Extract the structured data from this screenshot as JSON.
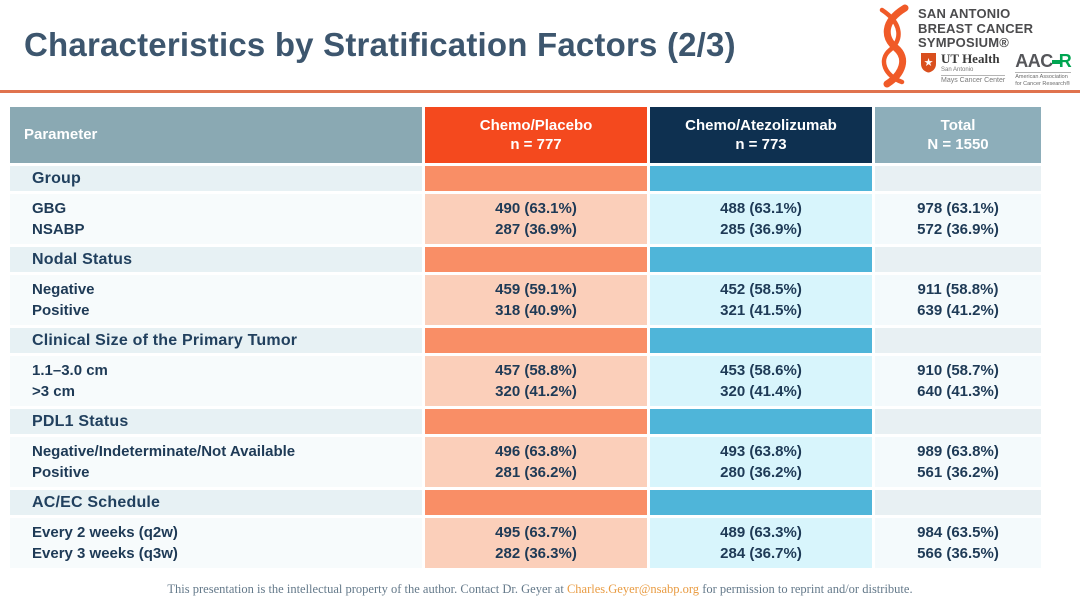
{
  "title": "Characteristics by Stratification Factors (2/3)",
  "logos": {
    "sabcs": {
      "line1": "SAN ANTONIO",
      "line2": "BREAST CANCER",
      "line3": "SYMPOSIUM®"
    },
    "ut_health": {
      "name": "UT Health",
      "sub1": "San Antonio",
      "sub2": "Mays Cancer Center"
    },
    "aacr": {
      "name_dark": "AAC",
      "name_green": "R",
      "sub1": "American Association",
      "sub2": "for Cancer Research®"
    }
  },
  "colors": {
    "title": "#3d566e",
    "divider": "#e0734e",
    "header_param": "#8aa9b3",
    "header_placebo": "#f4491e",
    "header_atezo": "#0e3050",
    "header_total": "#8daeba",
    "section_placebo": "#f98e66",
    "section_atezo": "#4fb5d9",
    "data_placebo": "#fbcfba",
    "data_atezo": "#d8f5fc",
    "value_text": "#1e3a56",
    "ribbon_orange": "#f05a28",
    "aacr_green": "#00a551",
    "email_orange": "#e99c43"
  },
  "table": {
    "columns": [
      {
        "label": "Parameter",
        "sub": ""
      },
      {
        "label": "Chemo/Placebo",
        "sub": "n = 777"
      },
      {
        "label": "Chemo/Atezolizumab",
        "sub": "n = 773"
      },
      {
        "label": "Total",
        "sub": "N = 1550"
      }
    ],
    "sections": [
      {
        "title": "Group",
        "rows": [
          {
            "label": "GBG",
            "placebo": "490 (63.1%)",
            "atezo": "488 (63.1%)",
            "total": "978 (63.1%)"
          },
          {
            "label": "NSABP",
            "placebo": "287 (36.9%)",
            "atezo": "285 (36.9%)",
            "total": "572 (36.9%)"
          }
        ]
      },
      {
        "title": "Nodal Status",
        "rows": [
          {
            "label": "Negative",
            "placebo": "459 (59.1%)",
            "atezo": "452 (58.5%)",
            "total": "911 (58.8%)"
          },
          {
            "label": "Positive",
            "placebo": "318 (40.9%)",
            "atezo": "321 (41.5%)",
            "total": "639 (41.2%)"
          }
        ]
      },
      {
        "title": "Clinical Size of the Primary Tumor",
        "rows": [
          {
            "label": "1.1–3.0 cm",
            "placebo": "457 (58.8%)",
            "atezo": "453 (58.6%)",
            "total": "910 (58.7%)"
          },
          {
            "label": ">3 cm",
            "placebo": "320 (41.2%)",
            "atezo": "320 (41.4%)",
            "total": "640 (41.3%)"
          }
        ]
      },
      {
        "title": "PDL1 Status",
        "rows": [
          {
            "label": "Negative/Indeterminate/Not Available",
            "placebo": "496 (63.8%)",
            "atezo": "493 (63.8%)",
            "total": "989 (63.8%)"
          },
          {
            "label": "Positive",
            "placebo": "281 (36.2%)",
            "atezo": "280 (36.2%)",
            "total": "561 (36.2%)"
          }
        ]
      },
      {
        "title": "AC/EC Schedule",
        "rows": [
          {
            "label": "Every 2 weeks (q2w)",
            "placebo": "495 (63.7%)",
            "atezo": "489 (63.3%)",
            "total": "984 (63.5%)"
          },
          {
            "label": "Every 3 weeks (q3w)",
            "placebo": "282 (36.3%)",
            "atezo": "284 (36.7%)",
            "total": "566 (36.5%)"
          }
        ]
      }
    ]
  },
  "footer": {
    "pre": "This presentation is the intellectual property of the author.  Contact Dr. Geyer at ",
    "email": "Charles.Geyer@nsabp.org",
    "post": " for permission to reprint and/or distribute."
  }
}
